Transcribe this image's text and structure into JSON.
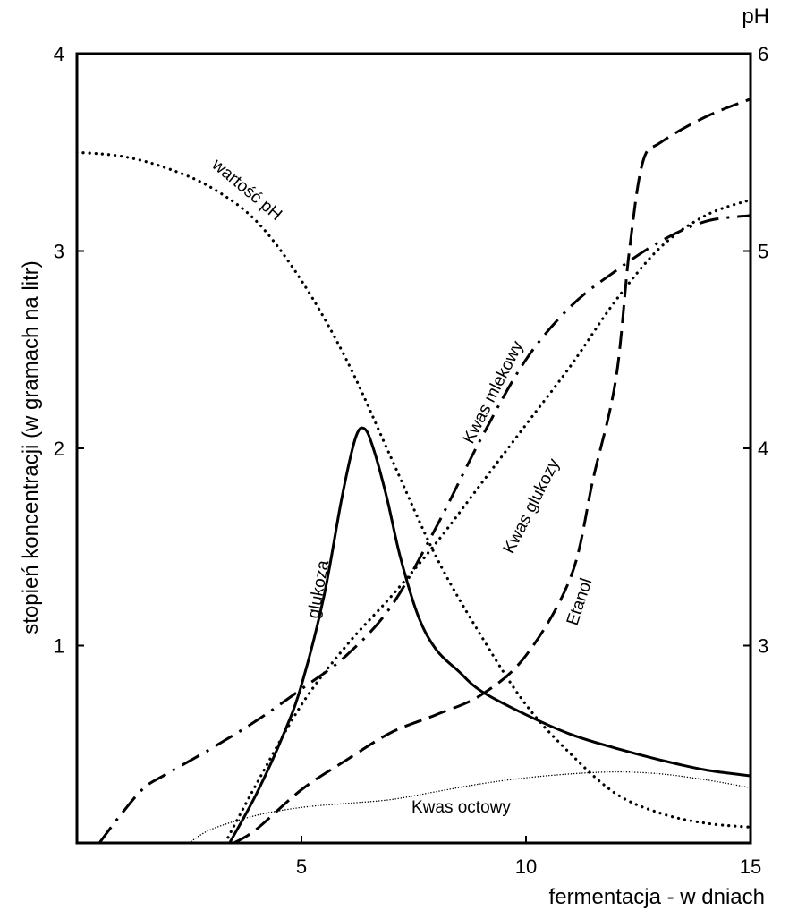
{
  "chart_data": {
    "type": "line",
    "xlabel": "fermentacja - w dniach",
    "ylabel": "stopień koncentracji (w gramach na litr)",
    "y2label": "pH",
    "xlim": [
      0,
      15
    ],
    "ylim": [
      0,
      4
    ],
    "y2lim": [
      2,
      6
    ],
    "x_ticks": [
      "5",
      "10",
      "15"
    ],
    "y_ticks": [
      "1",
      "2",
      "3",
      "4"
    ],
    "y2_ticks": [
      "3",
      "4",
      "5",
      "6"
    ],
    "grid": false,
    "series": [
      {
        "name": "glukoza",
        "axis": "left",
        "style": "solid",
        "x": [
          3.4,
          4.0,
          4.6,
          5.0,
          5.5,
          5.9,
          6.2,
          6.4,
          6.6,
          6.9,
          7.2,
          7.6,
          8.0,
          8.5,
          9.0,
          10.0,
          11.0,
          12.0,
          13.0,
          14.0,
          15.0
        ],
        "values": [
          0.0,
          0.25,
          0.55,
          0.8,
          1.25,
          1.75,
          2.05,
          2.1,
          2.0,
          1.75,
          1.45,
          1.15,
          0.98,
          0.87,
          0.77,
          0.65,
          0.55,
          0.48,
          0.42,
          0.37,
          0.34
        ]
      },
      {
        "name": "Kwas mlekowy",
        "axis": "left",
        "style": "dashdot",
        "x": [
          0.5,
          1.0,
          1.5,
          2.0,
          3.0,
          4.0,
          5.0,
          6.0,
          7.0,
          8.0,
          9.0,
          10.0,
          11.0,
          12.0,
          13.0,
          14.0,
          15.0
        ],
        "values": [
          0.0,
          0.15,
          0.28,
          0.35,
          0.48,
          0.62,
          0.78,
          0.95,
          1.2,
          1.6,
          2.05,
          2.45,
          2.72,
          2.9,
          3.05,
          3.15,
          3.18
        ]
      },
      {
        "name": "Kwas glukozy",
        "axis": "left",
        "style": "dotted",
        "x": [
          3.3,
          4.0,
          5.0,
          6.0,
          7.0,
          8.0,
          9.0,
          10.0,
          11.0,
          12.0,
          13.0,
          14.0,
          15.0
        ],
        "values": [
          0.0,
          0.3,
          0.7,
          1.0,
          1.25,
          1.52,
          1.82,
          2.12,
          2.42,
          2.75,
          3.02,
          3.18,
          3.26
        ]
      },
      {
        "name": "Etanol",
        "axis": "left",
        "style": "dashed",
        "x": [
          3.5,
          4.0,
          5.0,
          6.0,
          7.0,
          8.0,
          9.0,
          10.0,
          11.0,
          11.5,
          12.0,
          12.3,
          12.6,
          13.0,
          14.0,
          15.0
        ],
        "values": [
          0.0,
          0.07,
          0.27,
          0.42,
          0.56,
          0.65,
          0.75,
          0.95,
          1.35,
          1.85,
          2.35,
          3.0,
          3.45,
          3.55,
          3.68,
          3.77
        ]
      },
      {
        "name": "Kwas octowy",
        "axis": "left",
        "style": "dotted-thin",
        "x": [
          2.5,
          3.0,
          4.0,
          5.0,
          6.0,
          7.0,
          8.0,
          9.0,
          10.0,
          11.0,
          12.0,
          13.0,
          14.0,
          15.0
        ],
        "values": [
          0.0,
          0.07,
          0.14,
          0.18,
          0.2,
          0.22,
          0.26,
          0.3,
          0.33,
          0.35,
          0.36,
          0.35,
          0.32,
          0.28
        ]
      },
      {
        "name": "wartość pH",
        "axis": "right",
        "style": "dotted",
        "x": [
          0.0,
          1.0,
          2.0,
          3.0,
          4.0,
          5.0,
          6.0,
          7.0,
          8.0,
          9.0,
          10.0,
          11.0,
          12.0,
          13.0,
          14.0,
          15.0
        ],
        "values": [
          5.5,
          5.48,
          5.42,
          5.32,
          5.15,
          4.85,
          4.45,
          3.95,
          3.45,
          3.05,
          2.7,
          2.45,
          2.25,
          2.15,
          2.1,
          2.08
        ]
      }
    ],
    "annotations": [
      "wartość pH",
      "Kwas mlekowy",
      "Kwas glukozy",
      "glukoza",
      "Etanol",
      "Kwas octowy"
    ]
  }
}
